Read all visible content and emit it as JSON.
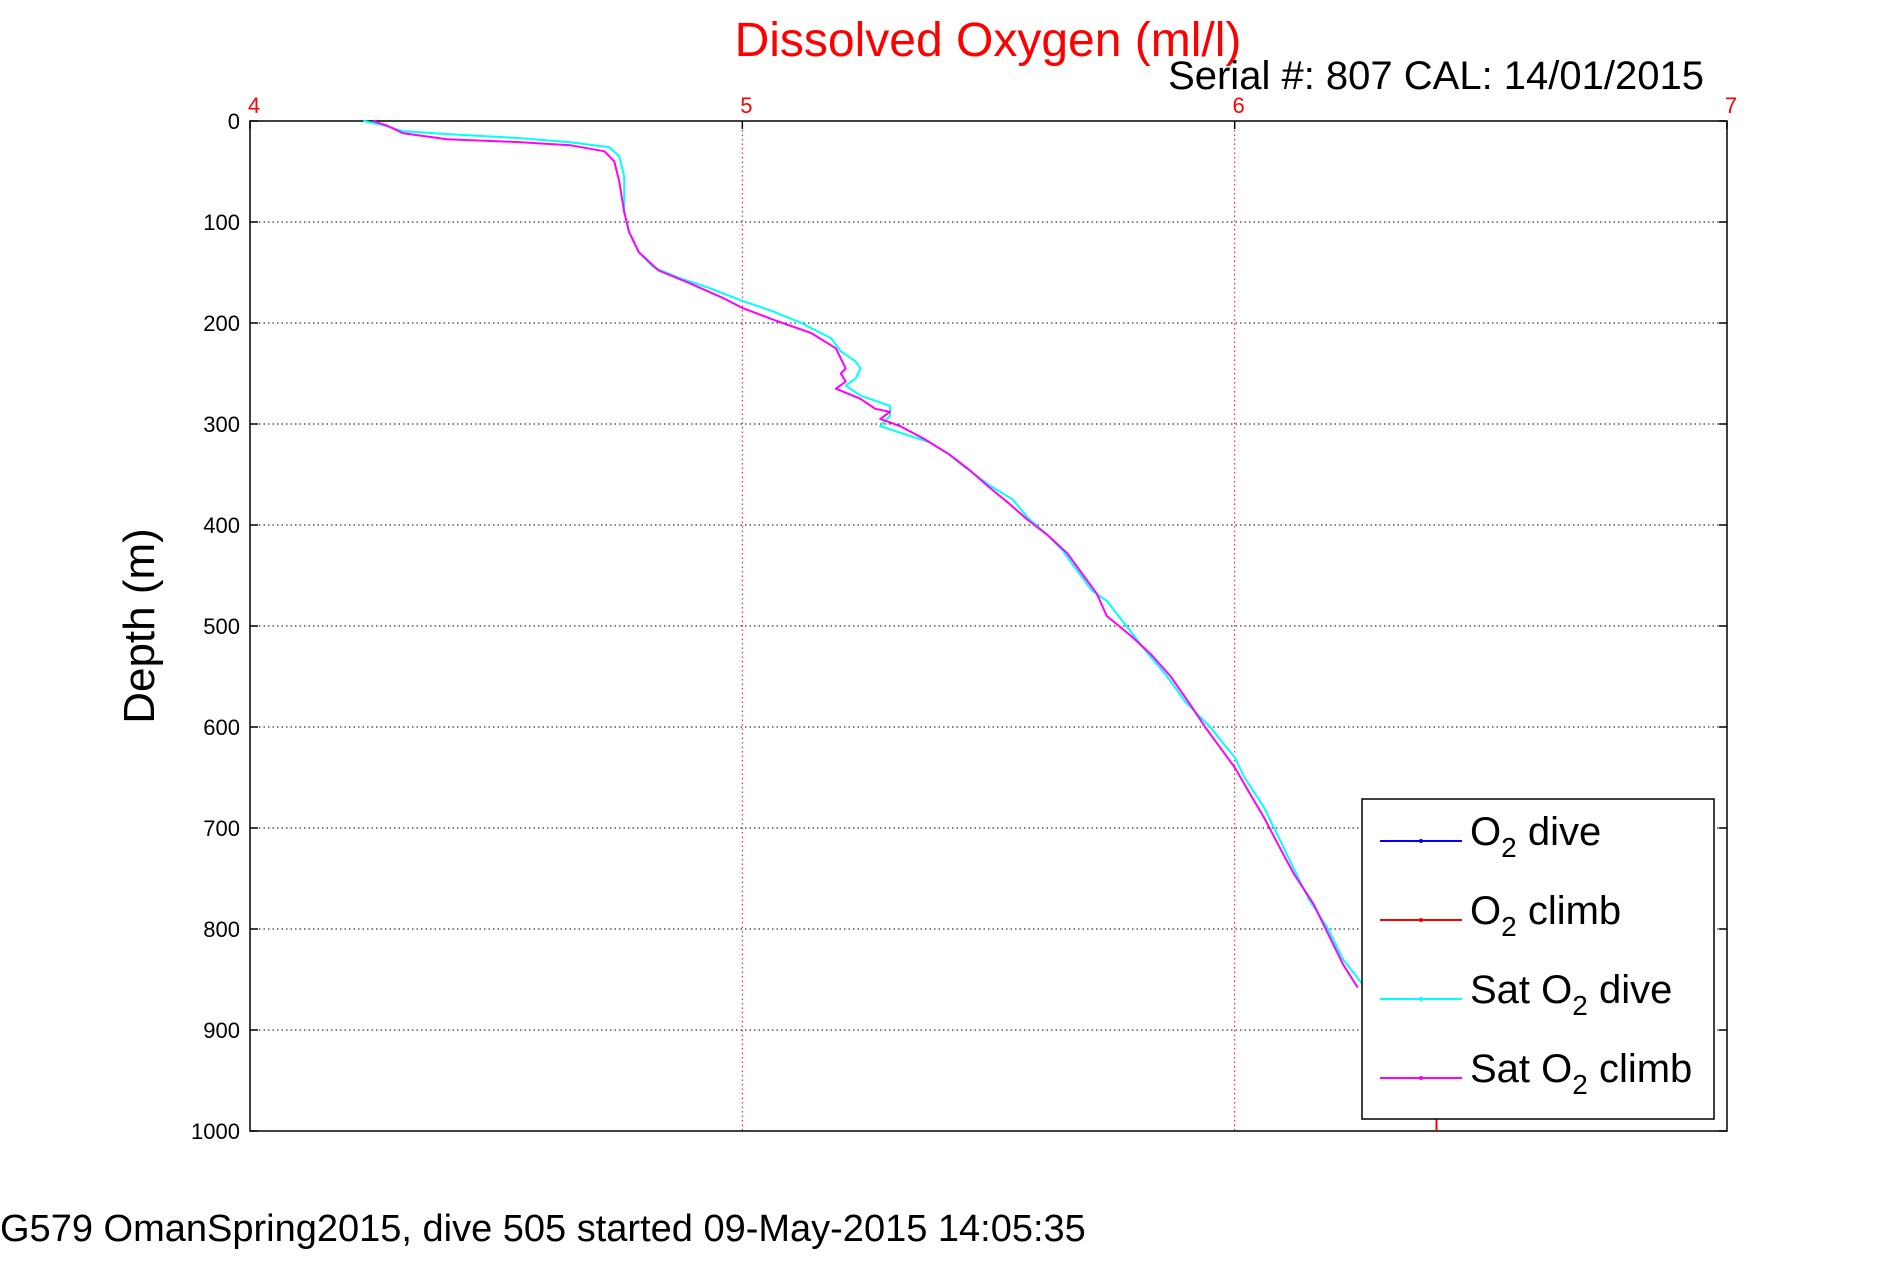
{
  "chart_data": {
    "type": "line",
    "title": "Dissolved Oxygen (ml/l)",
    "subtitle": "Serial #: 807  CAL: 14/01/2015",
    "ylabel": "Depth (m)",
    "xlim": [
      4,
      7
    ],
    "ylim": [
      0,
      1000
    ],
    "y_inverted": true,
    "x_ticks": [
      "4",
      "5",
      "6",
      "7"
    ],
    "y_ticks": [
      "0",
      "100",
      "200",
      "300",
      "400",
      "500",
      "600",
      "700",
      "800",
      "900",
      "1000"
    ],
    "grid": true,
    "legend_position": "bottom-right",
    "colors": {
      "title": "#ff0000",
      "x_ticks": "#ff0000",
      "x_grid": "#ff0000",
      "y_grid": "#000000"
    },
    "series": [
      {
        "id": "o2-dive",
        "color": "#0000ff",
        "legend": {
          "base": "O",
          "sub": "2",
          "rest": " dive"
        },
        "points": [
          [
            6.41,
            985
          ],
          [
            6.41,
            1000
          ]
        ]
      },
      {
        "id": "o2-climb",
        "color": "#ff0000",
        "legend": {
          "base": "O",
          "sub": "2",
          "rest": " climb"
        },
        "points": [
          [
            6.41,
            985
          ],
          [
            6.41,
            1000
          ]
        ]
      },
      {
        "id": "sat-o2-dive",
        "color": "#00ffff",
        "legend": {
          "base": "Sat O",
          "sub": "2",
          "rest": " dive"
        },
        "points": [
          [
            4.23,
            0
          ],
          [
            4.27,
            4
          ],
          [
            4.31,
            10
          ],
          [
            4.4,
            13
          ],
          [
            4.55,
            17
          ],
          [
            4.65,
            21
          ],
          [
            4.73,
            26
          ],
          [
            4.75,
            35
          ],
          [
            4.76,
            55
          ],
          [
            4.76,
            90
          ],
          [
            4.77,
            110
          ],
          [
            4.79,
            130
          ],
          [
            4.82,
            145
          ],
          [
            4.87,
            155
          ],
          [
            4.93,
            165
          ],
          [
            5.0,
            178
          ],
          [
            5.06,
            188
          ],
          [
            5.12,
            200
          ],
          [
            5.18,
            215
          ],
          [
            5.2,
            228
          ],
          [
            5.23,
            238
          ],
          [
            5.24,
            245
          ],
          [
            5.23,
            255
          ],
          [
            5.21,
            262
          ],
          [
            5.24,
            272
          ],
          [
            5.3,
            282
          ],
          [
            5.3,
            292
          ],
          [
            5.28,
            302
          ],
          [
            5.31,
            307
          ],
          [
            5.38,
            318
          ],
          [
            5.42,
            330
          ],
          [
            5.45,
            342
          ],
          [
            5.5,
            360
          ],
          [
            5.55,
            375
          ],
          [
            5.58,
            393
          ],
          [
            5.62,
            410
          ],
          [
            5.65,
            425
          ],
          [
            5.68,
            445
          ],
          [
            5.71,
            465
          ],
          [
            5.74,
            475
          ],
          [
            5.78,
            500
          ],
          [
            5.82,
            525
          ],
          [
            5.86,
            548
          ],
          [
            5.9,
            575
          ],
          [
            5.95,
            600
          ],
          [
            5.98,
            618
          ],
          [
            6.0,
            630
          ],
          [
            6.02,
            650
          ],
          [
            6.06,
            680
          ],
          [
            6.09,
            710
          ],
          [
            6.12,
            740
          ],
          [
            6.15,
            770
          ],
          [
            6.19,
            800
          ],
          [
            6.22,
            830
          ],
          [
            6.26,
            855
          ]
        ]
      },
      {
        "id": "sat-o2-climb",
        "color": "#ff00ff",
        "legend": {
          "base": "Sat O",
          "sub": "2",
          "rest": " climb"
        },
        "points": [
          [
            4.25,
            0
          ],
          [
            4.28,
            5
          ],
          [
            4.31,
            12
          ],
          [
            4.4,
            18
          ],
          [
            4.55,
            21
          ],
          [
            4.65,
            24
          ],
          [
            4.72,
            30
          ],
          [
            4.74,
            40
          ],
          [
            4.75,
            60
          ],
          [
            4.76,
            90
          ],
          [
            4.77,
            110
          ],
          [
            4.79,
            130
          ],
          [
            4.83,
            148
          ],
          [
            4.89,
            160
          ],
          [
            4.96,
            175
          ],
          [
            5.0,
            185
          ],
          [
            5.07,
            198
          ],
          [
            5.14,
            210
          ],
          [
            5.19,
            225
          ],
          [
            5.2,
            235
          ],
          [
            5.21,
            245
          ],
          [
            5.2,
            250
          ],
          [
            5.21,
            258
          ],
          [
            5.19,
            265
          ],
          [
            5.24,
            275
          ],
          [
            5.27,
            285
          ],
          [
            5.3,
            288
          ],
          [
            5.28,
            295
          ],
          [
            5.32,
            302
          ],
          [
            5.37,
            315
          ],
          [
            5.42,
            330
          ],
          [
            5.46,
            345
          ],
          [
            5.5,
            362
          ],
          [
            5.54,
            378
          ],
          [
            5.58,
            395
          ],
          [
            5.62,
            410
          ],
          [
            5.66,
            428
          ],
          [
            5.69,
            448
          ],
          [
            5.72,
            468
          ],
          [
            5.74,
            490
          ],
          [
            5.79,
            510
          ],
          [
            5.83,
            528
          ],
          [
            5.87,
            550
          ],
          [
            5.91,
            578
          ],
          [
            5.94,
            600
          ],
          [
            5.97,
            620
          ],
          [
            6.0,
            640
          ],
          [
            6.03,
            665
          ],
          [
            6.06,
            690
          ],
          [
            6.09,
            718
          ],
          [
            6.12,
            745
          ],
          [
            6.16,
            775
          ],
          [
            6.19,
            805
          ],
          [
            6.22,
            835
          ],
          [
            6.25,
            858
          ]
        ]
      }
    ]
  },
  "footer": "G579 OmanSpring2015, dive 505 started 09-May-2015 14:05:35"
}
